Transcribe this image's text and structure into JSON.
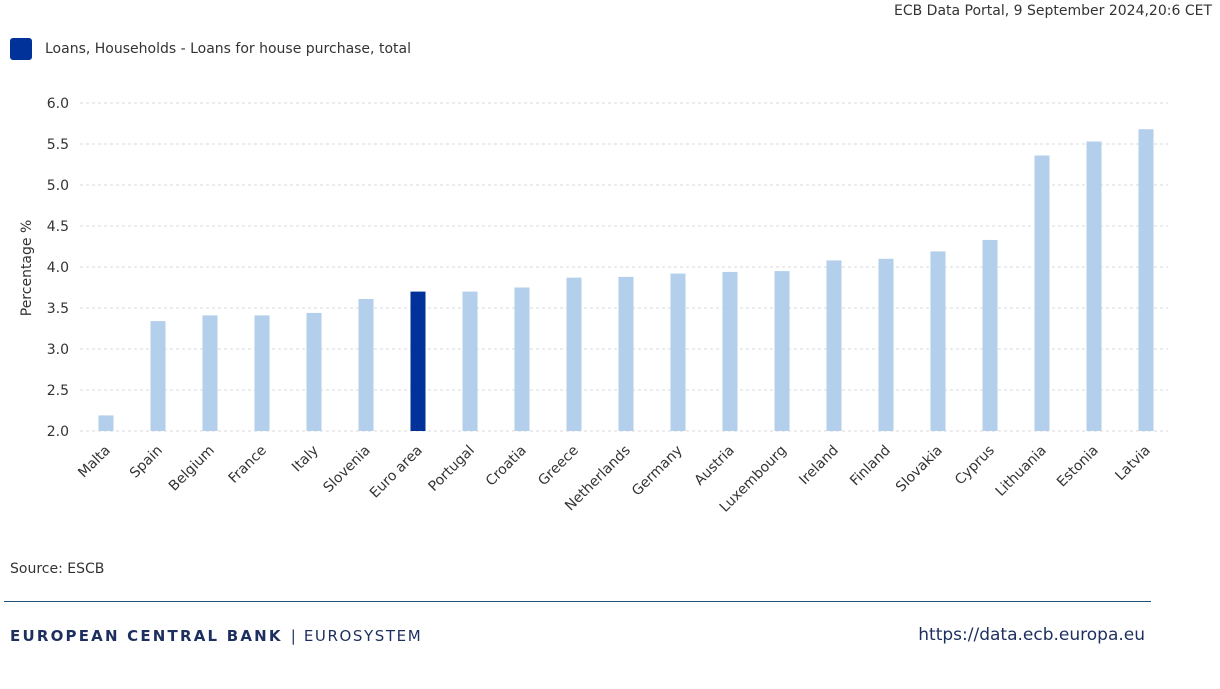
{
  "header": {
    "timestamp": "ECB Data Portal, 9 September 2024,20:6 CET"
  },
  "legend": {
    "label": "Loans, Households - Loans for house purchase, total",
    "color": "#003299"
  },
  "chart_data": {
    "type": "bar",
    "categories": [
      "Malta",
      "Spain",
      "Belgium",
      "France",
      "Italy",
      "Slovenia",
      "Euro area",
      "Portugal",
      "Croatia",
      "Greece",
      "Netherlands",
      "Germany",
      "Austria",
      "Luxembourg",
      "Ireland",
      "Finland",
      "Slovakia",
      "Cyprus",
      "Lithuania",
      "Estonia",
      "Latvia"
    ],
    "values": [
      2.19,
      3.34,
      3.41,
      3.41,
      3.44,
      3.61,
      3.7,
      3.7,
      3.75,
      3.87,
      3.88,
      3.92,
      3.94,
      3.95,
      4.08,
      4.1,
      4.19,
      4.33,
      5.36,
      5.53,
      5.68
    ],
    "highlight_category": "Euro area",
    "bar_color": "#b3cfeb",
    "highlight_color": "#003299",
    "ylabel": "Percentage %",
    "ylim": [
      2.0,
      6.0
    ],
    "yticks": [
      "2.0",
      "2.5",
      "3.0",
      "3.5",
      "4.0",
      "4.5",
      "5.0",
      "5.5",
      "6.0"
    ],
    "grid": true,
    "legend_position": "top-left"
  },
  "source": "Source: ESCB",
  "footer": {
    "brand_main": "EUROPEAN CENTRAL BANK",
    "brand_separator": "|",
    "brand_sub": "EUROSYSTEM",
    "url": "https://data.ecb.europa.eu"
  }
}
